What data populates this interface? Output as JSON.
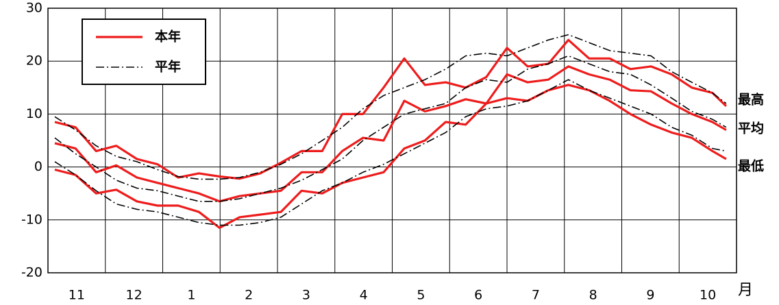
{
  "chart_data": {
    "type": "line",
    "categories": [
      "11",
      "12",
      "1",
      "2",
      "3",
      "4",
      "5",
      "6",
      "7",
      "8",
      "9",
      "10"
    ],
    "x_unit": "月",
    "x": [
      0.12,
      0.48,
      0.84,
      1.19,
      1.55,
      1.91,
      2.27,
      2.63,
      2.99,
      3.34,
      3.7,
      4.06,
      4.42,
      4.78,
      5.13,
      5.49,
      5.85,
      6.21,
      6.57,
      6.93,
      7.28,
      7.64,
      8.0,
      8.36,
      8.72,
      9.07,
      9.43,
      9.79,
      10.15,
      10.51,
      10.87,
      11.22,
      11.58,
      11.82
    ],
    "xlim": [
      0,
      12
    ],
    "xticks": [
      0,
      1,
      2,
      3,
      4,
      5,
      6,
      7,
      8,
      9,
      10,
      11,
      12
    ],
    "ylim": [
      -20,
      30
    ],
    "yticks": [
      -20,
      -10,
      0,
      10,
      20,
      30
    ],
    "grid": true,
    "series": [
      {
        "name": "本年",
        "label": "最高",
        "color": "#ee1c1c",
        "dash": "solid",
        "values": [
          8.5,
          7.5,
          3,
          4,
          1.5,
          0.5,
          -2,
          -1.2,
          -1.8,
          -2.2,
          -1.2,
          0.8,
          3,
          3,
          10,
          10,
          15,
          20.5,
          15.5,
          16,
          15,
          17,
          22.5,
          19,
          19.5,
          24,
          20.5,
          20.5,
          18.5,
          19,
          17.5,
          15,
          14,
          11.5
        ]
      },
      {
        "name": "本年",
        "label": "平均",
        "color": "#ee1c1c",
        "dash": "solid",
        "values": [
          4.5,
          3.5,
          -1,
          0.3,
          -2,
          -3,
          -4,
          -5,
          -6.5,
          -5.5,
          -5,
          -4.5,
          -1,
          -1,
          3,
          5.5,
          5,
          12.5,
          10.5,
          11.5,
          12.8,
          12,
          17.5,
          16,
          16.5,
          19,
          17.5,
          16.5,
          14.5,
          14.3,
          12,
          10,
          8.5,
          7
        ]
      },
      {
        "name": "本年",
        "label": "最低",
        "color": "#ee1c1c",
        "dash": "solid",
        "values": [
          -0.5,
          -1.5,
          -5,
          -4.3,
          -6.5,
          -7.3,
          -7.3,
          -8.5,
          -11.5,
          -9.5,
          -9,
          -8.5,
          -4.5,
          -5,
          -3,
          -2,
          -1,
          3.5,
          5,
          8.5,
          8,
          12,
          13,
          12.5,
          14.5,
          15.5,
          14.5,
          12.5,
          10,
          8,
          6.5,
          5.5,
          3,
          1.5
        ]
      },
      {
        "name": "平年",
        "label": "最高",
        "color": "#000000",
        "dash": "dashdot",
        "values": [
          9.5,
          7,
          4,
          2,
          1,
          -0.5,
          -1.8,
          -2.3,
          -2.3,
          -2,
          -1,
          0.5,
          2.5,
          5,
          7.5,
          11,
          13.5,
          15,
          16.5,
          18.5,
          21,
          21.5,
          21,
          22.5,
          24,
          25,
          23.5,
          22,
          21.5,
          21,
          18,
          16,
          14,
          12
        ]
      },
      {
        "name": "平年",
        "label": "平均",
        "color": "#000000",
        "dash": "dashdot",
        "values": [
          5.5,
          2.5,
          0,
          -2.5,
          -4,
          -4.5,
          -5.5,
          -6.5,
          -6.5,
          -6,
          -5,
          -4,
          -2.5,
          -0.5,
          1.5,
          5,
          7.5,
          10,
          11,
          12,
          15,
          16.5,
          16,
          18.5,
          19.5,
          21,
          19.5,
          18,
          17.5,
          15.5,
          13,
          10.5,
          9,
          7.5
        ]
      },
      {
        "name": "平年",
        "label": "最低",
        "color": "#000000",
        "dash": "dashdot",
        "values": [
          1,
          -1.5,
          -4.5,
          -7,
          -8,
          -8.5,
          -9.5,
          -10.5,
          -11,
          -11,
          -10.5,
          -9.5,
          -7,
          -4.5,
          -3,
          -1,
          0.5,
          2.5,
          4.5,
          6.5,
          9.5,
          11,
          11.5,
          12.5,
          14.5,
          16.5,
          14.5,
          13,
          11.5,
          10,
          7.5,
          6,
          3.5,
          3
        ]
      }
    ]
  }
}
